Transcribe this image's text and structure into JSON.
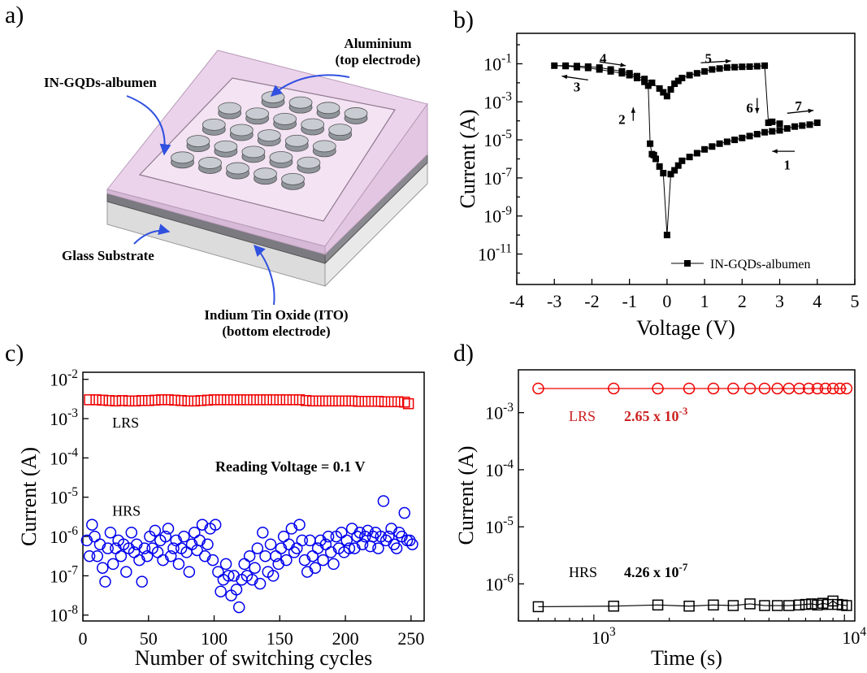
{
  "panel_a": {
    "letter": "a)",
    "labels": {
      "top": "Aluminium",
      "top_sub": "(top electrode)",
      "film": "IN-GQDs-albumen",
      "glass": "Glass Substrate",
      "ito": "Indium Tin Oxide (ITO)",
      "ito_sub": "(bottom electrode)"
    },
    "colors": {
      "film": "#e9cde9",
      "arrow": "#3050e0",
      "disk": "#b8bcc2"
    }
  },
  "chart_data": [
    {
      "panel": "b)",
      "type": "line",
      "xlabel": "Voltage (V)",
      "ylabel": "Current (A)",
      "xlim": [
        -4,
        5
      ],
      "ylim": [
        -12.6,
        0.6
      ],
      "y_scale": "log",
      "xticks": [
        -4,
        -3,
        -2,
        -1,
        0,
        1,
        2,
        3,
        4,
        5
      ],
      "ytick_exponents": [
        -11,
        -9,
        -7,
        -5,
        -3,
        -1
      ],
      "legend": {
        "label": "IN-GQDs-albumen",
        "position": "bottom-right"
      },
      "series": [
        {
          "name": "IN-GQDs-albumen",
          "color": "#000000",
          "marker": "filled-square",
          "x": [
            4.0,
            3.8,
            3.6,
            3.4,
            3.2,
            3.0,
            2.8,
            2.6,
            2.4,
            2.2,
            2.0,
            1.8,
            1.6,
            1.4,
            1.2,
            1.0,
            0.8,
            0.6,
            0.4,
            0.3,
            0.2,
            0.1,
            0.0,
            -0.1,
            -0.2,
            -0.3,
            -0.35,
            -0.4,
            -0.45,
            -0.5,
            -0.6,
            -0.8,
            -1.0,
            -1.2,
            -1.5,
            -1.8,
            -2.1,
            -2.4,
            -2.7,
            -3.0,
            -2.7,
            -2.4,
            -2.1,
            -1.8,
            -1.5,
            -1.2,
            -1.0,
            -0.8,
            -0.6,
            -0.4,
            -0.2,
            -0.1,
            0.0,
            0.1,
            0.2,
            0.3,
            0.4,
            0.6,
            0.8,
            1.0,
            1.2,
            1.4,
            1.6,
            1.8,
            2.0,
            2.2,
            2.4,
            2.6,
            2.7,
            2.8,
            3.0
          ],
          "log10_current": [
            -4.1,
            -4.2,
            -4.25,
            -4.3,
            -4.4,
            -4.5,
            -4.55,
            -4.6,
            -4.7,
            -4.8,
            -4.9,
            -5.0,
            -5.1,
            -5.2,
            -5.35,
            -5.5,
            -5.7,
            -5.9,
            -6.1,
            -6.35,
            -6.6,
            -6.8,
            -10.0,
            -6.75,
            -6.4,
            -6.0,
            -5.8,
            -5.75,
            -5.2,
            -2.15,
            -1.95,
            -1.75,
            -1.6,
            -1.5,
            -1.4,
            -1.3,
            -1.22,
            -1.18,
            -1.12,
            -1.1,
            -1.1,
            -1.12,
            -1.15,
            -1.2,
            -1.3,
            -1.4,
            -1.5,
            -1.65,
            -1.8,
            -2.0,
            -2.3,
            -2.5,
            -2.7,
            -2.35,
            -2.05,
            -1.9,
            -1.75,
            -1.6,
            -1.5,
            -1.4,
            -1.3,
            -1.25,
            -1.2,
            -1.18,
            -1.16,
            -1.15,
            -1.13,
            -1.1,
            -4.1,
            -4.05,
            -4.15
          ]
        }
      ],
      "annotations": [
        {
          "text": "1",
          "x": 3.2,
          "ly": -6.3
        },
        {
          "text": "2",
          "x": -1.2,
          "ly": -3.9
        },
        {
          "text": "3",
          "x": -2.4,
          "ly": -2.2
        },
        {
          "text": "4",
          "x": -1.7,
          "ly": -0.7
        },
        {
          "text": "5",
          "x": 1.1,
          "ly": -0.7
        },
        {
          "text": "6",
          "x": 2.2,
          "ly": -3.3
        },
        {
          "text": "7",
          "x": 3.5,
          "ly": -3.2
        }
      ]
    },
    {
      "panel": "c)",
      "type": "scatter",
      "xlabel": "Number of switching cycles",
      "ylabel": "Current (A)",
      "xlim": [
        0,
        260
      ],
      "ylim": [
        -8.15,
        -1.82
      ],
      "y_scale": "log",
      "xticks": [
        0,
        50,
        100,
        150,
        200,
        250
      ],
      "ytick_exponents": [
        -8,
        -7,
        -6,
        -5,
        -4,
        -3,
        -2
      ],
      "annotation_text": "Reading Voltage = 0.1 V",
      "series": [
        {
          "name": "LRS",
          "color": "#ee0000",
          "marker": "open-square",
          "x": [
            5,
            10,
            15,
            20,
            25,
            30,
            35,
            40,
            45,
            50,
            55,
            60,
            65,
            70,
            75,
            80,
            85,
            90,
            95,
            100,
            105,
            110,
            115,
            120,
            125,
            130,
            135,
            140,
            145,
            150,
            155,
            160,
            165,
            170,
            175,
            180,
            185,
            190,
            195,
            200,
            205,
            210,
            215,
            220,
            225,
            230,
            235,
            240,
            245,
            248
          ],
          "log10_current": [
            -2.52,
            -2.52,
            -2.53,
            -2.54,
            -2.55,
            -2.54,
            -2.55,
            -2.55,
            -2.54,
            -2.54,
            -2.53,
            -2.52,
            -2.52,
            -2.53,
            -2.54,
            -2.55,
            -2.55,
            -2.54,
            -2.53,
            -2.52,
            -2.52,
            -2.52,
            -2.52,
            -2.52,
            -2.52,
            -2.52,
            -2.52,
            -2.52,
            -2.52,
            -2.52,
            -2.52,
            -2.52,
            -2.52,
            -2.54,
            -2.55,
            -2.55,
            -2.55,
            -2.55,
            -2.55,
            -2.55,
            -2.55,
            -2.56,
            -2.56,
            -2.56,
            -2.56,
            -2.57,
            -2.57,
            -2.57,
            -2.58,
            -2.62
          ]
        },
        {
          "name": "HRS",
          "color": "#0000ee",
          "marker": "open-circle",
          "x": [
            3,
            5,
            7,
            9,
            11,
            13,
            15,
            17,
            19,
            21,
            23,
            25,
            27,
            29,
            31,
            33,
            35,
            37,
            39,
            41,
            43,
            45,
            47,
            49,
            51,
            53,
            55,
            57,
            59,
            61,
            63,
            65,
            67,
            69,
            71,
            73,
            75,
            77,
            79,
            81,
            83,
            85,
            87,
            89,
            91,
            93,
            95,
            97,
            99,
            101,
            103,
            105,
            107,
            109,
            111,
            113,
            115,
            117,
            119,
            121,
            123,
            125,
            127,
            129,
            131,
            133,
            135,
            137,
            139,
            141,
            143,
            145,
            147,
            149,
            151,
            153,
            155,
            157,
            159,
            161,
            163,
            165,
            167,
            169,
            171,
            173,
            175,
            177,
            179,
            181,
            183,
            185,
            187,
            189,
            191,
            193,
            195,
            197,
            199,
            201,
            203,
            205,
            207,
            209,
            211,
            213,
            215,
            217,
            219,
            221,
            223,
            225,
            227,
            229,
            231,
            233,
            235,
            237,
            239,
            241,
            243,
            245,
            247,
            249,
            251
          ],
          "log10_current": [
            -6.1,
            -6.5,
            -5.7,
            -6.0,
            -6.5,
            -6.2,
            -6.8,
            -7.15,
            -6.3,
            -5.9,
            -6.7,
            -6.3,
            -6.1,
            -6.5,
            -6.2,
            -6.9,
            -6.3,
            -5.9,
            -6.4,
            -6.2,
            -6.6,
            -7.15,
            -6.3,
            -6.5,
            -6.0,
            -6.3,
            -5.85,
            -6.4,
            -6.1,
            -6.6,
            -6.0,
            -5.8,
            -6.5,
            -6.3,
            -6.1,
            -6.7,
            -6.3,
            -6.0,
            -6.4,
            -6.9,
            -6.2,
            -5.9,
            -6.35,
            -6.1,
            -5.7,
            -6.5,
            -6.2,
            -5.8,
            -6.6,
            -5.7,
            -6.9,
            -7.4,
            -7.1,
            -6.7,
            -7.0,
            -7.5,
            -7.0,
            -7.35,
            -7.8,
            -7.1,
            -6.7,
            -7.0,
            -6.5,
            -7.1,
            -6.8,
            -6.3,
            -7.2,
            -5.9,
            -6.5,
            -6.9,
            -6.2,
            -7.0,
            -6.5,
            -6.7,
            -6.3,
            -6.0,
            -6.6,
            -6.2,
            -5.8,
            -6.4,
            -6.3,
            -5.7,
            -6.1,
            -6.6,
            -6.9,
            -6.1,
            -6.5,
            -6.8,
            -6.3,
            -6.1,
            -6.6,
            -6.2,
            -6.0,
            -6.4,
            -6.7,
            -6.0,
            -6.3,
            -5.9,
            -6.4,
            -6.1,
            -6.3,
            -5.8,
            -6.3,
            -6.0,
            -5.9,
            -6.2,
            -6.0,
            -5.85,
            -6.25,
            -6.0,
            -5.9,
            -6.3,
            -6.0,
            -5.1,
            -6.1,
            -6.0,
            -5.8,
            -6.2,
            -6.3,
            -5.9,
            -6.0,
            -5.4,
            -6.1,
            -6.1,
            -6.2
          ]
        }
      ],
      "series_labels": [
        {
          "text": "LRS",
          "x": 10,
          "ly": -3.1
        },
        {
          "text": "HRS",
          "x": 10,
          "ly": -5.35
        }
      ]
    },
    {
      "panel": "d)",
      "type": "line",
      "xlabel": "Time (s)",
      "ylabel": "Current (A)",
      "xlim": [
        500,
        11000
      ],
      "ylim": [
        -6.65,
        -2.25
      ],
      "x_scale": "log",
      "y_scale": "log",
      "xtick_exponents": [
        3,
        4
      ],
      "ytick_exponents": [
        -6,
        -5,
        -4,
        -3
      ],
      "series": [
        {
          "name": "LRS",
          "color": "#ee0000",
          "marker": "open-circle",
          "x": [
            600,
            1200,
            1800,
            2400,
            3000,
            3600,
            4200,
            4800,
            5400,
            6000,
            6600,
            7200,
            7800,
            8400,
            9000,
            9600,
            10200
          ],
          "log10_current": [
            -2.577,
            -2.577,
            -2.577,
            -2.577,
            -2.577,
            -2.577,
            -2.577,
            -2.577,
            -2.577,
            -2.577,
            -2.577,
            -2.577,
            -2.577,
            -2.577,
            -2.577,
            -2.577,
            -2.577
          ]
        },
        {
          "name": "HRS",
          "color": "#000000",
          "marker": "open-square",
          "x": [
            600,
            1200,
            1800,
            2400,
            3000,
            3600,
            4200,
            4800,
            5400,
            6000,
            6600,
            7000,
            7400,
            7800,
            8200,
            8600,
            9000,
            9400,
            9800,
            10200
          ],
          "log10_current": [
            -6.4,
            -6.39,
            -6.37,
            -6.39,
            -6.37,
            -6.38,
            -6.35,
            -6.38,
            -6.38,
            -6.38,
            -6.37,
            -6.36,
            -6.35,
            -6.37,
            -6.34,
            -6.36,
            -6.3,
            -6.36,
            -6.37,
            -6.38
          ]
        }
      ],
      "value_labels": [
        {
          "name": "LRS",
          "value_text": "2.65 x 10",
          "exponent": "-3",
          "color": "#cc2222"
        },
        {
          "name": "HRS",
          "value_text": "4.26 x 10",
          "exponent": "-7",
          "color": "#000000"
        }
      ]
    }
  ]
}
